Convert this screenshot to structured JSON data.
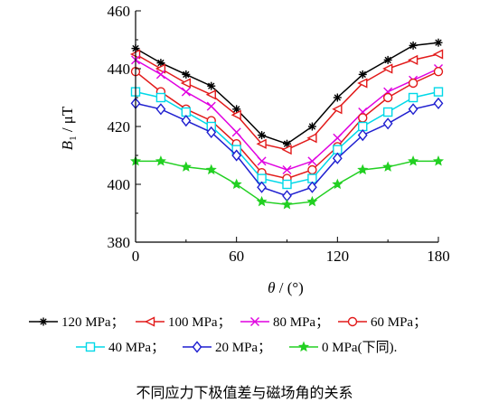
{
  "chart_data": {
    "type": "line",
    "caption": "不同应力下极值差与磁场角的关系",
    "xlabel": "θ / (°)",
    "ylabel": "B₁ / μT",
    "xlim": [
      0,
      180
    ],
    "ylim": [
      380,
      460
    ],
    "xticks": [
      0,
      60,
      120,
      180
    ],
    "yticks": [
      380,
      400,
      420,
      440,
      460
    ],
    "x": [
      0,
      15,
      30,
      45,
      60,
      75,
      90,
      105,
      120,
      135,
      150,
      165,
      180
    ],
    "series": [
      {
        "name": "120 MPa",
        "legend_text": "120 MPa；",
        "color": "#000000",
        "marker": "asterisk",
        "values": [
          447,
          442,
          438,
          434,
          426,
          417,
          414,
          420,
          430,
          438,
          443,
          448,
          449
        ]
      },
      {
        "name": "100 MPa",
        "legend_text": "100 MPa；",
        "color": "#e21a1a",
        "marker": "triangle-left",
        "values": [
          445,
          440,
          435,
          431,
          424,
          414,
          412,
          416,
          426,
          435,
          440,
          443,
          445
        ]
      },
      {
        "name": "80 MPa",
        "legend_text": "80 MPa；",
        "color": "#e000e0",
        "marker": "x",
        "values": [
          443,
          438,
          432,
          427,
          418,
          408,
          405,
          408,
          416,
          425,
          432,
          436,
          440
        ]
      },
      {
        "name": "60 MPa",
        "legend_text": "60 MPa；",
        "color": "#e21a1a",
        "marker": "circle",
        "values": [
          439,
          432,
          426,
          422,
          414,
          404,
          402,
          405,
          413,
          423,
          430,
          435,
          439
        ]
      },
      {
        "name": "40 MPa",
        "legend_text": "40 MPa；",
        "color": "#00d8e8",
        "marker": "square",
        "values": [
          432,
          430,
          425,
          420,
          412,
          402,
          400,
          402,
          412,
          420,
          425,
          430,
          432
        ]
      },
      {
        "name": "20 MPa",
        "legend_text": "20 MPa；",
        "color": "#1f1fd0",
        "marker": "diamond",
        "values": [
          428,
          426,
          422,
          418,
          410,
          399,
          396,
          399,
          409,
          417,
          421,
          426,
          428
        ]
      },
      {
        "name": "0 MPa(下同)",
        "legend_text": "0 MPa(下同).",
        "color": "#22d022",
        "marker": "star",
        "values": [
          408,
          408,
          406,
          405,
          400,
          394,
          393,
          394,
          400,
          405,
          406,
          408,
          408
        ]
      }
    ],
    "grid": false,
    "legend_position": "bottom"
  }
}
